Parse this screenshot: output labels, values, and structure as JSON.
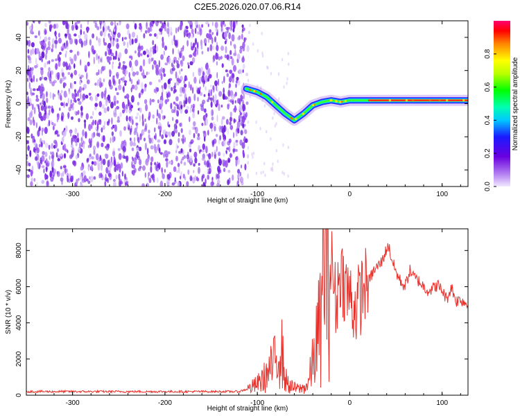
{
  "title": "C2E5.2026.020.07.06.R14",
  "colors": {
    "axis": "#000000",
    "snr_line": "#e8302a",
    "noise": "#7b2be6",
    "noise_light": "#c9a8f5"
  },
  "chart_data": [
    {
      "type": "heatmap",
      "name": "spectrogram",
      "xlabel": "Height of straight line (km)",
      "ylabel": "Frequency (Hz)",
      "xlim": [
        -350,
        128
      ],
      "ylim": [
        -50,
        50
      ],
      "x_ticks": [
        -300,
        -200,
        -100,
        0,
        100
      ],
      "y_ticks": [
        -40,
        -20,
        0,
        20,
        40
      ],
      "noise_region_end_km": -110,
      "doppler_track": [
        {
          "x": -112,
          "y": 9
        },
        {
          "x": -100,
          "y": 7
        },
        {
          "x": -90,
          "y": 4
        },
        {
          "x": -80,
          "y": -1
        },
        {
          "x": -70,
          "y": -6
        },
        {
          "x": -60,
          "y": -10
        },
        {
          "x": -50,
          "y": -6
        },
        {
          "x": -40,
          "y": -1
        },
        {
          "x": -30,
          "y": 1
        },
        {
          "x": -20,
          "y": 2
        },
        {
          "x": -10,
          "y": 1
        },
        {
          "x": 0,
          "y": 2
        },
        {
          "x": 20,
          "y": 2
        },
        {
          "x": 60,
          "y": 2
        },
        {
          "x": 100,
          "y": 2
        },
        {
          "x": 128,
          "y": 2
        }
      ],
      "colorbar": {
        "label": "Normalized spectral amplitude",
        "range": [
          0,
          1
        ],
        "ticks": [
          0.0,
          0.2,
          0.4,
          0.6,
          0.8
        ]
      }
    },
    {
      "type": "line",
      "name": "snr",
      "xlabel": "Height of straight line (km)",
      "ylabel": "SNR (10 * v/v)",
      "xlim": [
        -350,
        128
      ],
      "ylim": [
        0,
        9200
      ],
      "x_ticks": [
        -300,
        -200,
        -100,
        0,
        100
      ],
      "y_ticks": [
        0,
        2000,
        4000,
        6000,
        8000
      ],
      "series": [
        {
          "name": "SNR",
          "x": [
            -350,
            -120,
            -110,
            -100,
            -90,
            -80,
            -75,
            -70,
            -65,
            -60,
            -55,
            -50,
            -45,
            -40,
            -35,
            -30,
            -28,
            -25,
            -20,
            -15,
            -10,
            -5,
            0,
            5,
            10,
            15,
            20,
            25,
            30,
            35,
            40,
            42,
            45,
            50,
            55,
            60,
            65,
            70,
            75,
            80,
            85,
            90,
            95,
            100,
            105,
            110,
            115,
            120,
            128
          ],
          "values": [
            200,
            200,
            350,
            600,
            1100,
            1900,
            3000,
            900,
            500,
            400,
            350,
            400,
            600,
            1800,
            3200,
            4200,
            9000,
            6500,
            7500,
            5000,
            7000,
            6000,
            5500,
            4800,
            5200,
            6000,
            6200,
            6800,
            7100,
            7400,
            8100,
            8300,
            7600,
            6800,
            6300,
            6000,
            6900,
            6500,
            6300,
            6000,
            5800,
            5900,
            6100,
            5800,
            5300,
            6000,
            5200,
            5300,
            5000
          ]
        }
      ]
    }
  ]
}
